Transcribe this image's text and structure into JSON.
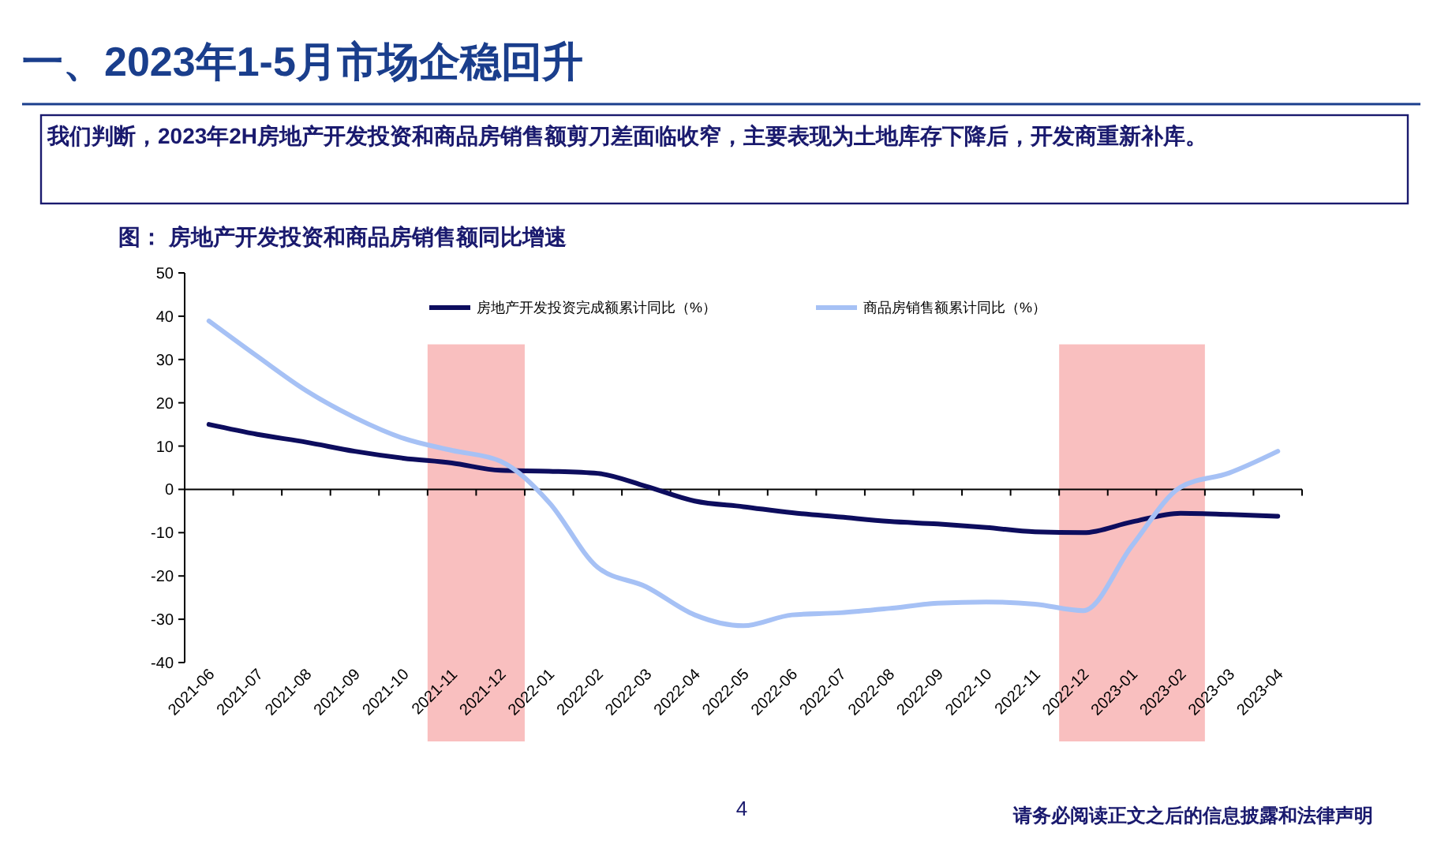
{
  "chart_data": {
    "type": "line",
    "title": "一、2023年1-5月市场企稳回升",
    "subtitle": "图： 房地产开发投资和商品房销售额同比增速",
    "annotations": [
      "我们判断，2023年2H房地产开发投资和商品房销售额剪刀差面临收窄，主要表现为土地库存下降后，开发商重新补库。",
      "4",
      "请务必阅读正文之后的信息披露和法律声明"
    ],
    "categories": [
      "2021-06",
      "2021-07",
      "2021-08",
      "2021-09",
      "2021-10",
      "2021-11",
      "2021-12",
      "2022-01",
      "2022-02",
      "2022-03",
      "2022-04",
      "2022-05",
      "2022-06",
      "2022-07",
      "2022-08",
      "2022-09",
      "2022-10",
      "2022-11",
      "2022-12",
      "2023-01",
      "2023-02",
      "2023-03",
      "2023-04"
    ],
    "series": [
      {
        "name": "房地产开发投资完成额累计同比（%）",
        "color": "#0d0d5e",
        "values": [
          15,
          12.7,
          10.9,
          8.8,
          7.2,
          6.1,
          4.4,
          4.2,
          3.7,
          0.7,
          -2.7,
          -4,
          -5.4,
          -6.4,
          -7.4,
          -8,
          -8.8,
          -9.8,
          -10,
          -7.5,
          -5.5,
          -5.8,
          -6.2
        ]
      },
      {
        "name": "商品房销售额累计同比（%）",
        "color": "#a6c1f5",
        "values": [
          38.9,
          30.7,
          22.8,
          16.6,
          11.8,
          9,
          6.5,
          -3,
          -18,
          -22.5,
          -29,
          -31.5,
          -29,
          -28.5,
          -27.5,
          -26.3,
          -26,
          -26.5,
          -28,
          -13,
          0.5,
          3.8,
          8.8
        ]
      }
    ],
    "ylim": [
      -40,
      50
    ],
    "yticks": [
      -40,
      -30,
      -20,
      -10,
      0,
      10,
      20,
      30,
      40,
      50
    ],
    "grid": false,
    "legend": "top",
    "marker": "none",
    "line_style": "solid",
    "ref_lines": [
      {
        "axis": "y",
        "value": 0,
        "color": "#000000"
      }
    ],
    "bands": [
      {
        "axis": "x",
        "from": "2021-11",
        "to": "2021-12",
        "color": "#f8b4b4"
      },
      {
        "axis": "x",
        "from": "2022-12",
        "to": "2023-02",
        "color": "#f8b4b4"
      }
    ]
  }
}
